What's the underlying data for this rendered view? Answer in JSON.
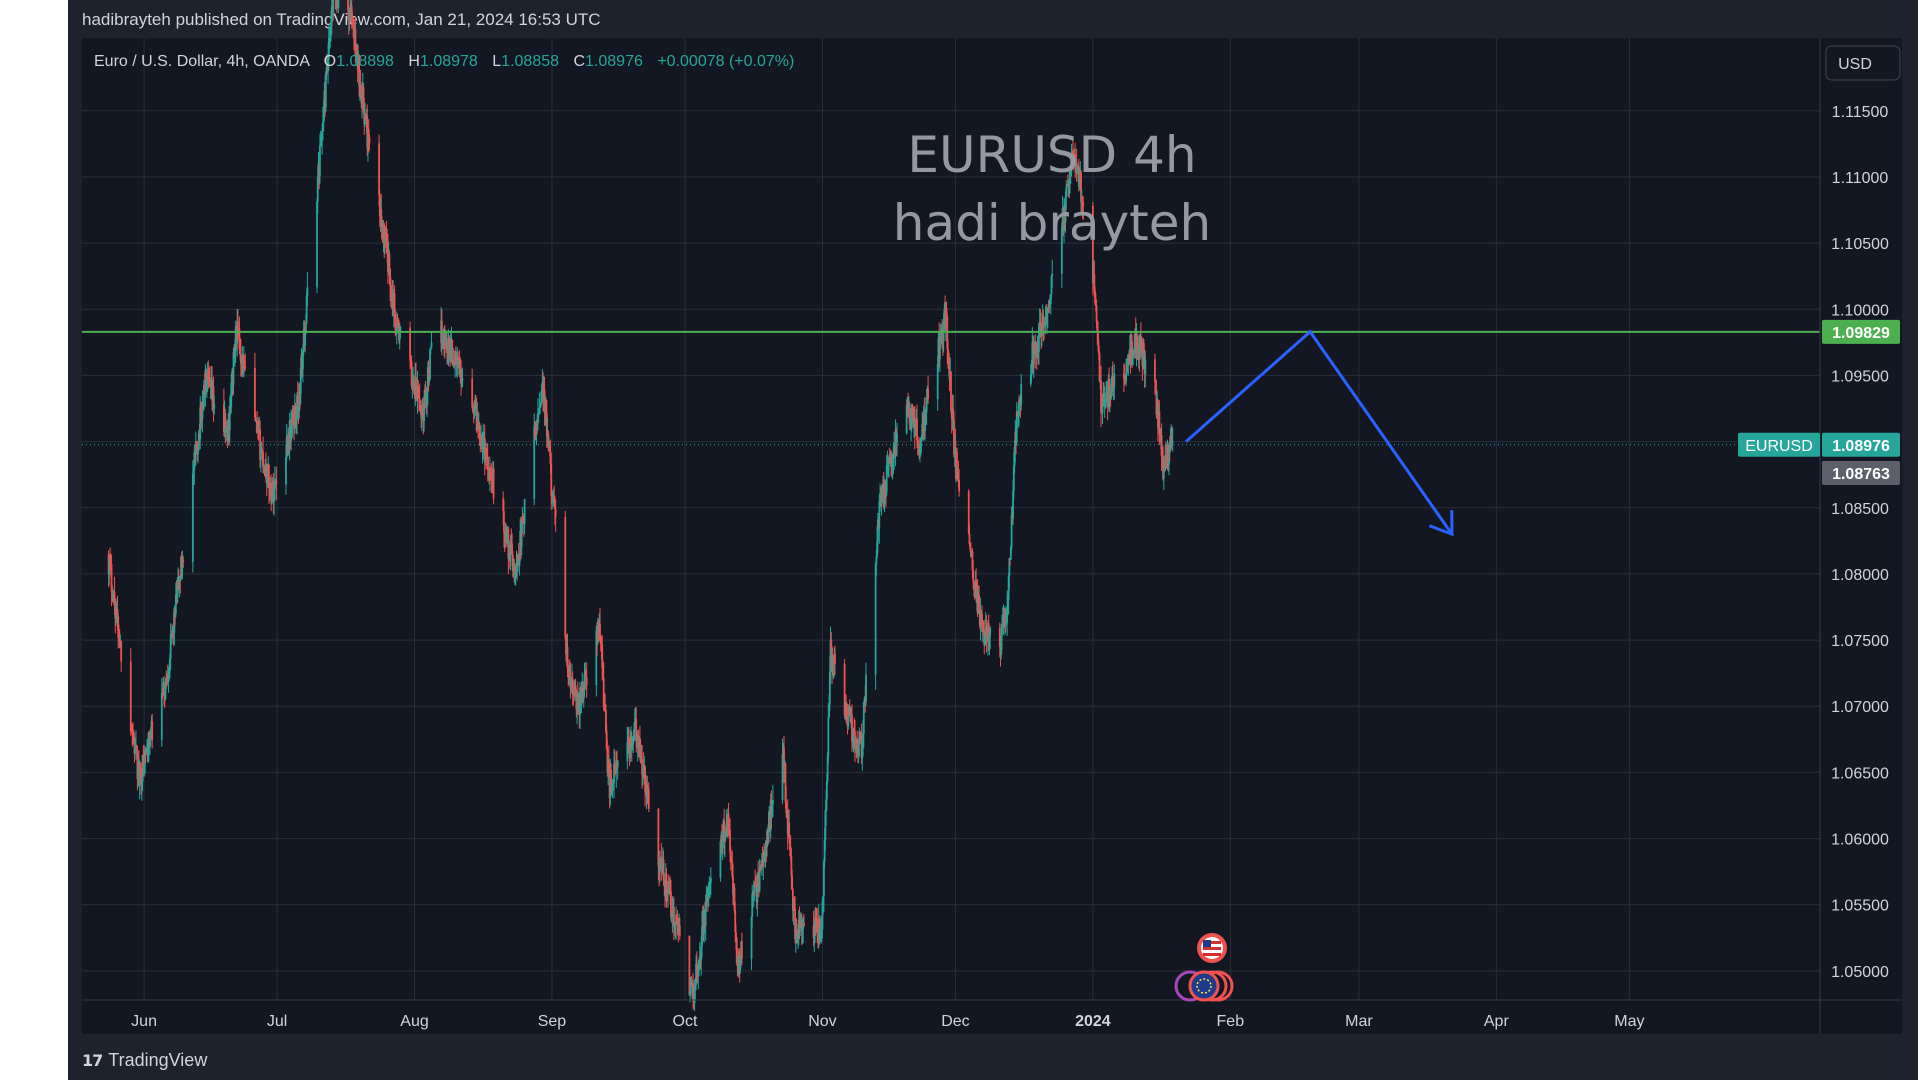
{
  "header": {
    "published": "hadibrayteh published on TradingView.com, Jan 21, 2024 16:53 UTC"
  },
  "legend": {
    "symbol": "Euro / U.S. Dollar, 4h, OANDA",
    "o_label": "O",
    "o_value": "1.08898",
    "h_label": "H",
    "h_value": "1.08978",
    "l_label": "L",
    "l_value": "1.08858",
    "c_label": "C",
    "c_value": "1.08976",
    "change": "+0.00078 (+0.07%)"
  },
  "currency_button": "USD",
  "watermark": {
    "line1": "EURUSD 4h",
    "line2": "hadi brayteh"
  },
  "footer": {
    "brand": "TradingView",
    "logo": "17"
  },
  "colors": {
    "background": "#1e222d",
    "up": "#26a69a",
    "down": "#ef5350",
    "resistance": "#4caf50",
    "projection": "#2962ff"
  },
  "chart_data": {
    "type": "candlestick",
    "symbol": "EURUSD",
    "timeframe": "4h",
    "x_tick_labels": [
      "Jun",
      "Jul",
      "Aug",
      "Sep",
      "Oct",
      "Nov",
      "Dec",
      "2024",
      "Feb",
      "Mar",
      "Apr",
      "May"
    ],
    "y_tick_labels": [
      "1.11500",
      "1.11000",
      "1.10500",
      "1.10000",
      "1.09500",
      "1.09000",
      "1.08500",
      "1.08000",
      "1.07500",
      "1.07000",
      "1.06500",
      "1.06000",
      "1.05500",
      "1.05000"
    ],
    "ylim": [
      1.0478,
      1.1205
    ],
    "price_anchors": [
      {
        "date": "2023-05-24",
        "price": 1.0815
      },
      {
        "date": "2023-05-31",
        "price": 1.0645
      },
      {
        "date": "2023-06-06",
        "price": 1.0715
      },
      {
        "date": "2023-06-15",
        "price": 1.0945
      },
      {
        "date": "2023-06-20",
        "price": 1.0905
      },
      {
        "date": "2023-06-22",
        "price": 1.0985
      },
      {
        "date": "2023-06-26",
        "price": 1.0915
      },
      {
        "date": "2023-06-30",
        "price": 1.086
      },
      {
        "date": "2023-07-06",
        "price": 1.093
      },
      {
        "date": "2023-07-14",
        "price": 1.124
      },
      {
        "date": "2023-07-18",
        "price": 1.122
      },
      {
        "date": "2023-07-22",
        "price": 1.112
      },
      {
        "date": "2023-07-26",
        "price": 1.104
      },
      {
        "date": "2023-07-28",
        "price": 1.099
      },
      {
        "date": "2023-08-03",
        "price": 1.092
      },
      {
        "date": "2023-08-06",
        "price": 1.099
      },
      {
        "date": "2023-08-10",
        "price": 1.0965
      },
      {
        "date": "2023-08-14",
        "price": 1.0935
      },
      {
        "date": "2023-08-18",
        "price": 1.088
      },
      {
        "date": "2023-08-24",
        "price": 1.08
      },
      {
        "date": "2023-08-30",
        "price": 1.0945
      },
      {
        "date": "2023-09-05",
        "price": 1.072
      },
      {
        "date": "2023-09-07",
        "price": 1.07
      },
      {
        "date": "2023-09-12",
        "price": 1.076
      },
      {
        "date": "2023-09-14",
        "price": 1.064
      },
      {
        "date": "2023-09-20",
        "price": 1.068
      },
      {
        "date": "2023-09-25",
        "price": 1.059
      },
      {
        "date": "2023-10-03",
        "price": 1.048
      },
      {
        "date": "2023-10-06",
        "price": 1.055
      },
      {
        "date": "2023-10-11",
        "price": 1.062
      },
      {
        "date": "2023-10-13",
        "price": 1.0505
      },
      {
        "date": "2023-10-19",
        "price": 1.0585
      },
      {
        "date": "2023-10-23",
        "price": 1.068
      },
      {
        "date": "2023-10-26",
        "price": 1.053
      },
      {
        "date": "2023-11-01",
        "price": 1.053
      },
      {
        "date": "2023-11-03",
        "price": 1.074
      },
      {
        "date": "2023-11-08",
        "price": 1.068
      },
      {
        "date": "2023-11-10",
        "price": 1.067
      },
      {
        "date": "2023-11-14",
        "price": 1.085
      },
      {
        "date": "2023-11-20",
        "price": 1.093
      },
      {
        "date": "2023-11-23",
        "price": 1.09
      },
      {
        "date": "2023-11-29",
        "price": 1.0995
      },
      {
        "date": "2023-12-01",
        "price": 1.089
      },
      {
        "date": "2023-12-07",
        "price": 1.076
      },
      {
        "date": "2023-12-11",
        "price": 1.074
      },
      {
        "date": "2023-12-13",
        "price": 1.078
      },
      {
        "date": "2023-12-15",
        "price": 1.092
      },
      {
        "date": "2023-12-18",
        "price": 1.096
      },
      {
        "date": "2023-12-22",
        "price": 1.1
      },
      {
        "date": "2023-12-28",
        "price": 1.112
      },
      {
        "date": "2024-01-01",
        "price": 1.104
      },
      {
        "date": "2024-01-03",
        "price": 1.093
      },
      {
        "date": "2024-01-08",
        "price": 1.095
      },
      {
        "date": "2024-01-11",
        "price": 1.0975
      },
      {
        "date": "2024-01-15",
        "price": 1.0945
      },
      {
        "date": "2024-01-17",
        "price": 1.088
      },
      {
        "date": "2024-01-19",
        "price": 1.0897
      }
    ],
    "levels": [
      {
        "price": 1.09829,
        "label": "1.09829",
        "style": "solid",
        "color": "#4caf50"
      },
      {
        "price": 1.08976,
        "label": "1.08976",
        "style": "dotted",
        "color": "#26a69a",
        "name": "EURUSD"
      },
      {
        "price": 1.08763,
        "label": "1.08763",
        "style": "label-only",
        "color": "#5d606b"
      }
    ],
    "projection": [
      {
        "date": "2024-01-22",
        "price": 1.09
      },
      {
        "date": "2024-02-19",
        "price": 1.0983
      },
      {
        "date": "2024-03-22",
        "price": 1.083
      }
    ],
    "event_markers": [
      "us-flag",
      "eu-flag"
    ]
  }
}
